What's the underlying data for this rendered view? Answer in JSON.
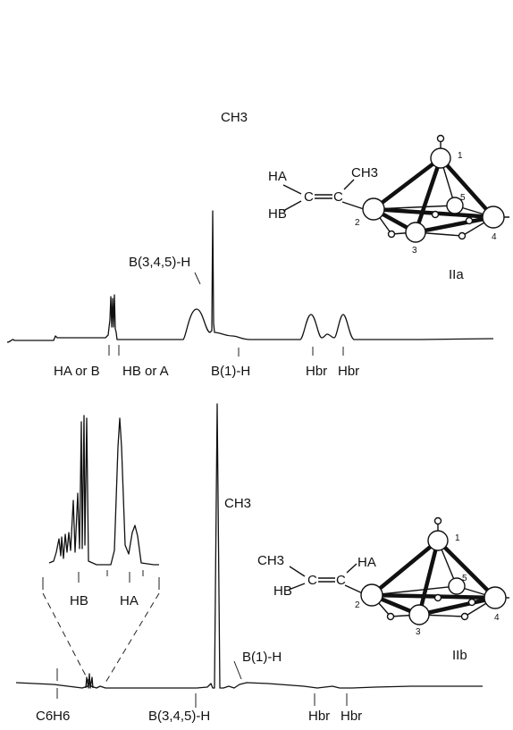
{
  "spectrum_a": {
    "peak_labels": {
      "ch3": "CH3",
      "b345": "B(3,4,5)-H",
      "b1": "B(1)-H",
      "ha_or_hb": "HA or B",
      "hb_or_ha": "HB or A",
      "hbr1": "Hbr",
      "hbr2": "Hbr"
    },
    "structure": {
      "label": "IIa",
      "substituents": [
        "HA",
        "HB",
        "CH3"
      ],
      "atom_numbers": [
        "1",
        "2",
        "3",
        "4",
        "5"
      ]
    }
  },
  "spectrum_b": {
    "peak_labels": {
      "ch3": "CH3",
      "b1": "B(1)-H",
      "b345": "B(3,4,5)-H",
      "c6h6": "C6H6",
      "hbr1": "Hbr",
      "hbr2": "Hbr"
    },
    "inset_labels": {
      "hb": "HB",
      "ha": "HA"
    },
    "structure": {
      "label": "IIb",
      "substituents": [
        "CH3",
        "HB",
        "HA"
      ],
      "atom_numbers": [
        "1",
        "2",
        "3",
        "4",
        "5"
      ]
    }
  }
}
